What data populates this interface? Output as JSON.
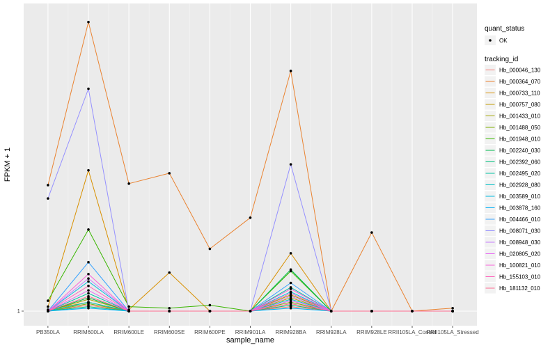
{
  "chart_data": {
    "type": "line",
    "xlabel": "sample_name",
    "ylabel": "FPKM + 1",
    "ylim": [
      1,
      21
    ],
    "y_ticks": [
      {
        "value": 1,
        "label": "1"
      }
    ],
    "grid": true,
    "legend_position": "right",
    "categories": [
      "PB350LA",
      "RRIM600LA",
      "RRIM600LE",
      "RRIM600SE",
      "RRIM600PE",
      "RRIM901LA",
      "RRIM928BA",
      "RRIM928LA",
      "RRIM928LE",
      "RRII105LA_Control",
      "RRII105LA_Stressed"
    ],
    "quant_status": {
      "title": "quant_status",
      "items": [
        {
          "label": "OK"
        }
      ]
    },
    "legend_title": "tracking_id",
    "series": [
      {
        "name": "Hb_000046_130",
        "color": "#F8766D",
        "values": [
          1.0,
          1.4,
          1.0,
          1.0,
          1.0,
          1.0,
          1.3,
          1.0,
          1.0,
          1.0,
          1.0
        ]
      },
      {
        "name": "Hb_000364_070",
        "color": "#EA8331",
        "values": [
          9.5,
          20.5,
          9.6,
          10.3,
          5.2,
          7.3,
          17.2,
          1.0,
          6.3,
          1.0,
          1.2
        ]
      },
      {
        "name": "Hb_000733_110",
        "color": "#D89000",
        "values": [
          1.3,
          10.5,
          1.1,
          3.6,
          1.0,
          1.0,
          4.9,
          1.0,
          1.0,
          1.0,
          1.0
        ]
      },
      {
        "name": "Hb_000757_080",
        "color": "#C09B00",
        "values": [
          1.1,
          1.6,
          1.0,
          1.0,
          1.0,
          1.0,
          1.9,
          1.0,
          1.0,
          1.0,
          1.0
        ]
      },
      {
        "name": "Hb_001433_010",
        "color": "#A3A500",
        "values": [
          1.0,
          1.8,
          1.0,
          1.0,
          1.0,
          1.0,
          2.1,
          1.0,
          1.0,
          1.0,
          1.0
        ]
      },
      {
        "name": "Hb_001488_050",
        "color": "#7CAE00",
        "values": [
          1.0,
          1.5,
          1.0,
          1.0,
          1.0,
          1.0,
          1.6,
          1.0,
          1.0,
          1.0,
          1.0
        ]
      },
      {
        "name": "Hb_001948_010",
        "color": "#39B600",
        "values": [
          1.7,
          6.5,
          1.3,
          1.2,
          1.4,
          1.0,
          3.7,
          1.0,
          1.0,
          1.0,
          1.0
        ]
      },
      {
        "name": "Hb_002240_030",
        "color": "#00BB4E",
        "values": [
          1.0,
          1.9,
          1.0,
          1.0,
          1.0,
          1.0,
          3.8,
          1.0,
          1.0,
          1.0,
          1.0
        ]
      },
      {
        "name": "Hb_002392_060",
        "color": "#00BF7D",
        "values": [
          1.0,
          1.3,
          1.0,
          1.0,
          1.0,
          1.0,
          1.4,
          1.0,
          1.0,
          1.0,
          1.0
        ]
      },
      {
        "name": "Hb_002495_020",
        "color": "#00C1A3",
        "values": [
          1.0,
          2.2,
          1.0,
          1.0,
          1.0,
          1.0,
          2.6,
          1.0,
          1.0,
          1.0,
          1.0
        ]
      },
      {
        "name": "Hb_002928_080",
        "color": "#00BFC4",
        "values": [
          1.0,
          1.6,
          1.0,
          1.0,
          1.0,
          1.0,
          1.8,
          1.0,
          1.0,
          1.0,
          1.0
        ]
      },
      {
        "name": "Hb_003589_010",
        "color": "#00BAE0",
        "values": [
          1.0,
          3.0,
          1.0,
          1.0,
          1.0,
          1.0,
          2.3,
          1.0,
          1.0,
          1.0,
          1.0
        ]
      },
      {
        "name": "Hb_003878_160",
        "color": "#00B0F6",
        "values": [
          1.0,
          1.2,
          1.0,
          1.0,
          1.0,
          1.0,
          1.2,
          1.0,
          1.0,
          1.0,
          1.0
        ]
      },
      {
        "name": "Hb_004466_010",
        "color": "#35A2FF",
        "values": [
          1.0,
          4.3,
          1.0,
          1.0,
          1.0,
          1.0,
          2.9,
          1.0,
          1.0,
          1.0,
          1.0
        ]
      },
      {
        "name": "Hb_008071_030",
        "color": "#9590FF",
        "values": [
          8.6,
          16.0,
          1.0,
          1.0,
          1.0,
          1.0,
          10.9,
          1.0,
          1.0,
          1.0,
          1.0
        ]
      },
      {
        "name": "Hb_008948_030",
        "color": "#C77CFF",
        "values": [
          1.0,
          3.2,
          1.0,
          1.0,
          1.0,
          1.0,
          2.0,
          1.0,
          1.0,
          1.0,
          1.0
        ]
      },
      {
        "name": "Hb_020805_020",
        "color": "#E76BF3",
        "values": [
          1.0,
          2.4,
          1.0,
          1.0,
          1.0,
          1.0,
          1.7,
          1.0,
          1.0,
          1.0,
          1.0
        ]
      },
      {
        "name": "Hb_100821_010",
        "color": "#FA62DB",
        "values": [
          1.0,
          3.5,
          1.0,
          1.0,
          1.0,
          1.0,
          2.5,
          1.0,
          1.0,
          1.0,
          1.0
        ]
      },
      {
        "name": "Hb_155103_010",
        "color": "#FF62BC",
        "values": [
          1.0,
          2.7,
          1.0,
          1.0,
          1.0,
          1.0,
          2.2,
          1.0,
          1.0,
          1.0,
          1.0
        ]
      },
      {
        "name": "Hb_181132_010",
        "color": "#FF6C91",
        "values": [
          1.0,
          2.0,
          1.0,
          1.0,
          1.0,
          1.0,
          1.5,
          1.0,
          1.0,
          1.0,
          1.0
        ]
      }
    ]
  }
}
